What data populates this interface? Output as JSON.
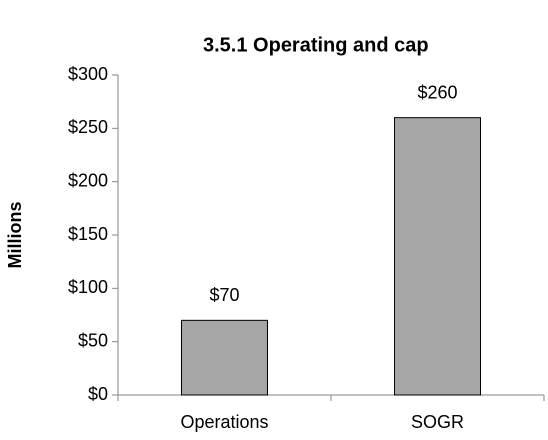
{
  "chart_data": {
    "type": "bar",
    "title": "3.5.1 Operating and cap",
    "y_label": "Millions",
    "categories": [
      "Operations",
      "SOGR"
    ],
    "values": [
      70,
      260
    ],
    "value_labels": [
      "$70",
      "$260"
    ],
    "color": "#a6a6a6",
    "ylim": [
      0,
      300
    ],
    "yticks": [
      {
        "value": 0,
        "label": "$0"
      },
      {
        "value": 50,
        "label": "$50"
      },
      {
        "value": 100,
        "label": "$100"
      },
      {
        "value": 150,
        "label": "$150"
      },
      {
        "value": 200,
        "label": "$200"
      },
      {
        "value": 250,
        "label": "$250"
      },
      {
        "value": 300,
        "label": "$300"
      }
    ],
    "grid": false
  }
}
